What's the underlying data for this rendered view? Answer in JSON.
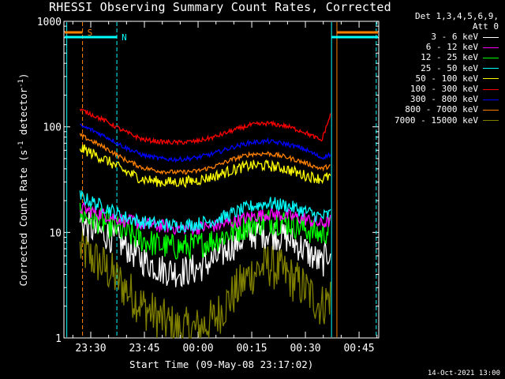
{
  "chart_data": {
    "type": "line",
    "title": "RHESSI Observing Summary Count Rates, Corrected",
    "xlabel": "Start Time (09-May-08 23:17:02)",
    "ylabel_main": "Corrected Count Rate (s",
    "ylabel_sup1": "-1",
    "ylabel_mid": " detector",
    "ylabel_sup2": "-1",
    "ylabel_end": ")",
    "y_scale": "log",
    "ylim": [
      1,
      1000
    ],
    "xlim_minutes": [
      23.0,
      111.0
    ],
    "y_ticks": [
      {
        "value": 1,
        "label": "1"
      },
      {
        "value": 10,
        "label": "10"
      },
      {
        "value": 100,
        "label": "100"
      },
      {
        "value": 1000,
        "label": "1000"
      }
    ],
    "x_ticks": [
      {
        "minute": 30.5,
        "label": "23:30"
      },
      {
        "minute": 45.5,
        "label": "23:45"
      },
      {
        "minute": 60.5,
        "label": "00:00"
      },
      {
        "minute": 75.5,
        "label": "00:15"
      },
      {
        "minute": 90.5,
        "label": "00:30"
      },
      {
        "minute": 105.5,
        "label": "00:45"
      }
    ],
    "legend_header": [
      "Det 1,3,4,5,6,9,",
      "Att 0"
    ],
    "series": [
      {
        "name": "3 - 6 keV",
        "color": "#ffffff",
        "x_minutes": [
          27.5,
          30,
          35,
          40,
          45,
          50,
          55,
          60,
          65,
          70,
          75,
          80,
          85,
          90,
          95,
          97.5
        ],
        "values": [
          13,
          11,
          9.5,
          7.5,
          5.5,
          4.5,
          4.2,
          4.5,
          5.5,
          7.5,
          9.5,
          10,
          9,
          7,
          5,
          7
        ]
      },
      {
        "name": "6 - 12 keV",
        "color": "#ff00ff",
        "x_minutes": [
          27.5,
          30,
          35,
          40,
          45,
          50,
          55,
          60,
          65,
          70,
          75,
          80,
          85,
          90,
          95,
          97.5
        ],
        "values": [
          17,
          16,
          14.5,
          13,
          12,
          11.5,
          11,
          11,
          11.5,
          12.5,
          14,
          15,
          14.5,
          13.5,
          12,
          13
        ]
      },
      {
        "name": "12 - 25 keV",
        "color": "#00ff00",
        "x_minutes": [
          27.5,
          30,
          35,
          40,
          45,
          50,
          55,
          60,
          65,
          70,
          75,
          80,
          85,
          90,
          95,
          97.5
        ],
        "values": [
          15,
          14,
          12,
          10,
          8.5,
          7.5,
          7.2,
          7.5,
          8.5,
          10,
          12,
          13,
          12.5,
          11,
          9.5,
          11
        ]
      },
      {
        "name": "25 - 50 keV",
        "color": "#00ffff",
        "x_minutes": [
          27.5,
          30,
          35,
          40,
          45,
          50,
          55,
          60,
          65,
          70,
          75,
          80,
          85,
          90,
          95,
          97.5
        ],
        "values": [
          22,
          20,
          17,
          14,
          12.5,
          12,
          11.5,
          12,
          13,
          15,
          17.5,
          19,
          18,
          16,
          14,
          15
        ]
      },
      {
        "name": "50 - 100 keV",
        "color": "#ffff00",
        "x_minutes": [
          27.5,
          30,
          35,
          40,
          45,
          50,
          55,
          60,
          65,
          70,
          75,
          80,
          85,
          90,
          95,
          97.5
        ],
        "values": [
          63,
          58,
          48,
          38,
          32,
          30,
          30,
          31,
          34,
          39,
          43,
          43,
          40,
          35,
          32,
          34
        ]
      },
      {
        "name": "100 - 300 keV",
        "color": "#ff0000",
        "x_minutes": [
          27.5,
          30,
          35,
          40,
          45,
          50,
          55,
          60,
          65,
          70,
          75,
          80,
          85,
          90,
          95,
          97.5
        ],
        "values": [
          145,
          135,
          112,
          90,
          76,
          72,
          71,
          73,
          80,
          92,
          104,
          108,
          102,
          90,
          74,
          130
        ]
      },
      {
        "name": "300 - 800 keV",
        "color": "#0000ff",
        "x_minutes": [
          27.5,
          30,
          35,
          40,
          45,
          50,
          55,
          60,
          65,
          70,
          75,
          80,
          85,
          90,
          95,
          97.5
        ],
        "values": [
          102,
          96,
          80,
          64,
          54,
          50,
          49,
          51,
          56,
          64,
          71,
          73,
          69,
          62,
          51,
          55
        ]
      },
      {
        "name": "800 - 7000 keV",
        "color": "#ff8000",
        "x_minutes": [
          27.5,
          30,
          35,
          40,
          45,
          50,
          55,
          60,
          65,
          70,
          75,
          80,
          85,
          90,
          95,
          97.5
        ],
        "values": [
          83,
          76,
          62,
          49,
          41,
          38,
          37,
          38,
          42,
          49,
          55,
          56,
          52,
          46,
          40,
          43
        ]
      },
      {
        "name": "7000 - 15000 keV",
        "color": "#808000",
        "x_minutes": [
          27.5,
          30,
          35,
          40,
          45,
          50,
          55,
          60,
          65,
          70,
          75,
          80,
          85,
          90,
          95,
          97.5
        ],
        "values": [
          7,
          6,
          4.5,
          3,
          2,
          1.5,
          1.2,
          1.2,
          1.5,
          2.5,
          4,
          5,
          4,
          3,
          2,
          2.5
        ]
      }
    ],
    "annotations": [
      {
        "label": "S",
        "color": "#ff8000"
      },
      {
        "label": "N",
        "color": "#00ffff"
      }
    ]
  },
  "timestamp": "14-Oct-2021 13:00"
}
